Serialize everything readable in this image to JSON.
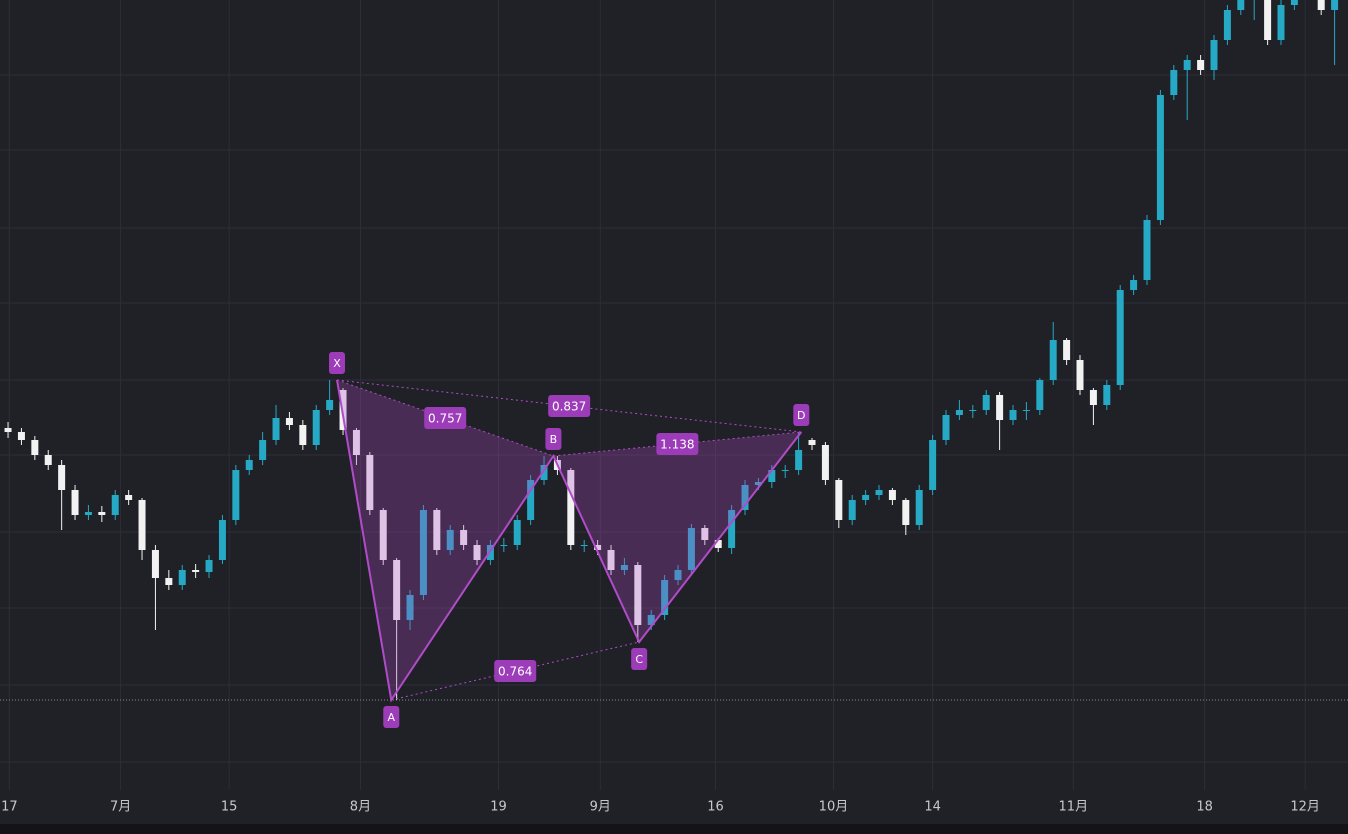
{
  "chart_data": {
    "type": "candlestick",
    "up_color": "#25a9c4",
    "down_color": "#f2f2f2",
    "pattern_color": "#b04cc9",
    "grid": true,
    "xlim": [
      -0.6,
      100
    ],
    "ylim": [
      0,
      790
    ],
    "xticks": [
      {
        "value": 0.1,
        "label": "17"
      },
      {
        "value": 8.4,
        "label": "7月"
      },
      {
        "value": 16.5,
        "label": "15"
      },
      {
        "value": 26.3,
        "label": "8月"
      },
      {
        "value": 36.6,
        "label": "19"
      },
      {
        "value": 44.2,
        "label": "9月"
      },
      {
        "value": 52.8,
        "label": "16"
      },
      {
        "value": 61.6,
        "label": "10月"
      },
      {
        "value": 69.0,
        "label": "14"
      },
      {
        "value": 79.5,
        "label": "11月"
      },
      {
        "value": 89.3,
        "label": "18"
      },
      {
        "value": 96.8,
        "label": "12月"
      }
    ],
    "ygrid": [
      715,
      640,
      562,
      487,
      410,
      335,
      258,
      182,
      105,
      28
    ],
    "price_line": 90,
    "open": [
      362,
      358,
      350,
      335,
      325,
      300,
      275,
      278,
      275,
      295,
      290,
      240,
      212,
      205,
      220,
      218,
      230,
      270,
      320,
      330,
      350,
      372,
      365,
      345,
      380,
      400,
      360,
      335,
      280,
      230,
      170,
      195,
      280,
      240,
      260,
      245,
      230,
      245,
      245,
      270,
      310,
      330,
      320,
      245,
      245,
      240,
      220,
      225,
      165,
      175,
      210,
      220,
      262,
      250,
      242,
      280,
      305,
      308,
      320,
      320,
      350,
      345,
      310,
      270,
      290,
      295,
      300,
      290,
      265,
      300,
      350,
      375,
      380,
      380,
      395,
      370,
      380,
      380,
      410,
      450,
      430,
      400,
      385,
      405,
      500,
      510,
      570,
      695,
      720,
      730,
      720,
      750,
      780,
      790,
      795,
      750,
      785,
      800,
      795,
      780
    ],
    "high": [
      368,
      362,
      354,
      340,
      330,
      305,
      285,
      284,
      300,
      300,
      292,
      245,
      220,
      225,
      226,
      235,
      275,
      325,
      335,
      358,
      385,
      378,
      370,
      385,
      410,
      402,
      362,
      338,
      282,
      232,
      200,
      285,
      282,
      265,
      265,
      250,
      250,
      252,
      275,
      315,
      334,
      334,
      322,
      250,
      250,
      245,
      232,
      228,
      180,
      215,
      225,
      266,
      265,
      252,
      285,
      310,
      312,
      325,
      325,
      358,
      352,
      348,
      312,
      295,
      300,
      305,
      302,
      292,
      305,
      355,
      380,
      390,
      385,
      400,
      398,
      385,
      388,
      412,
      468,
      452,
      435,
      402,
      410,
      505,
      515,
      575,
      700,
      725,
      735,
      735,
      755,
      785,
      795,
      800,
      800,
      790,
      805,
      805,
      800,
      800
    ],
    "low": [
      352,
      345,
      330,
      320,
      260,
      270,
      270,
      268,
      270,
      285,
      230,
      160,
      200,
      200,
      212,
      212,
      226,
      265,
      315,
      325,
      345,
      360,
      340,
      340,
      375,
      355,
      325,
      275,
      225,
      90,
      160,
      190,
      235,
      235,
      240,
      225,
      225,
      238,
      240,
      265,
      305,
      315,
      240,
      238,
      235,
      215,
      215,
      148,
      160,
      170,
      205,
      215,
      245,
      238,
      236,
      275,
      300,
      302,
      312,
      315,
      340,
      305,
      262,
      265,
      285,
      290,
      285,
      255,
      260,
      295,
      345,
      370,
      372,
      375,
      340,
      365,
      370,
      375,
      405,
      425,
      395,
      365,
      380,
      400,
      495,
      505,
      565,
      690,
      670,
      715,
      710,
      745,
      775,
      770,
      745,
      745,
      780,
      790,
      775,
      725
    ],
    "close": [
      358,
      350,
      335,
      325,
      300,
      275,
      278,
      275,
      295,
      290,
      240,
      212,
      205,
      220,
      218,
      230,
      270,
      320,
      330,
      350,
      372,
      365,
      345,
      380,
      390,
      360,
      335,
      280,
      230,
      170,
      195,
      280,
      240,
      260,
      245,
      230,
      245,
      245,
      270,
      310,
      325,
      320,
      245,
      245,
      240,
      220,
      225,
      165,
      175,
      210,
      220,
      262,
      250,
      242,
      280,
      305,
      308,
      320,
      320,
      340,
      345,
      310,
      270,
      290,
      295,
      300,
      290,
      265,
      300,
      350,
      375,
      380,
      380,
      395,
      370,
      380,
      380,
      410,
      450,
      430,
      400,
      385,
      405,
      500,
      510,
      570,
      695,
      720,
      730,
      720,
      750,
      780,
      790,
      795,
      750,
      785,
      800,
      795,
      780,
      795
    ],
    "pattern": {
      "points": [
        {
          "label": "X",
          "x": 24.55,
          "y": 410
        },
        {
          "label": "A",
          "x": 28.6,
          "y": 90
        },
        {
          "label": "B",
          "x": 40.7,
          "y": 334
        },
        {
          "label": "C",
          "x": 47.1,
          "y": 148
        },
        {
          "label": "D",
          "x": 59.2,
          "y": 358
        }
      ],
      "ratios": [
        0.757,
        0.837,
        1.138,
        0.764
      ]
    }
  }
}
